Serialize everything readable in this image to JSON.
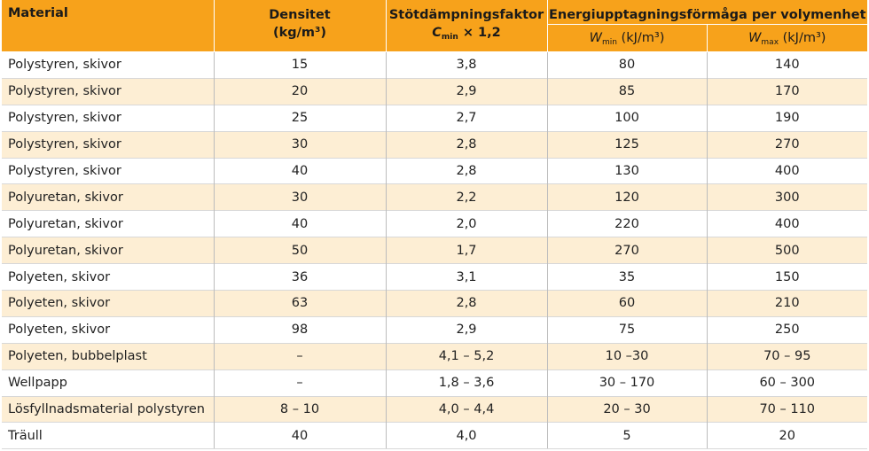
{
  "header": {
    "material": "Material",
    "density_line1": "Densitet",
    "density_line2": "(kg/m³)",
    "shock_line1": "Stötdämpningsfaktor",
    "shock_var": "C",
    "shock_sub": "min",
    "shock_rest": " × 1,2",
    "energy": "Energiupptagningsförmåga per volymenhet",
    "wmin_var": "W",
    "wmin_sub": "min",
    "wmin_unit": " (kJ/m³)",
    "wmax_var": "W",
    "wmax_sub": "max",
    "wmax_unit": " (kJ/m³)"
  },
  "rows": [
    {
      "material": "Polystyren, skivor",
      "density": "15",
      "shock": "3,8",
      "wmin": "80",
      "wmax": "140"
    },
    {
      "material": "Polystyren, skivor",
      "density": "20",
      "shock": "2,9",
      "wmin": "85",
      "wmax": "170"
    },
    {
      "material": "Polystyren, skivor",
      "density": "25",
      "shock": "2,7",
      "wmin": "100",
      "wmax": "190"
    },
    {
      "material": "Polystyren, skivor",
      "density": "30",
      "shock": "2,8",
      "wmin": "125",
      "wmax": "270"
    },
    {
      "material": "Polystyren, skivor",
      "density": "40",
      "shock": "2,8",
      "wmin": "130",
      "wmax": "400"
    },
    {
      "material": "Polyuretan, skivor",
      "density": "30",
      "shock": "2,2",
      "wmin": "120",
      "wmax": "300"
    },
    {
      "material": "Polyuretan, skivor",
      "density": "40",
      "shock": "2,0",
      "wmin": "220",
      "wmax": "400"
    },
    {
      "material": "Polyuretan, skivor",
      "density": "50",
      "shock": "1,7",
      "wmin": "270",
      "wmax": "500"
    },
    {
      "material": "Polyeten, skivor",
      "density": "36",
      "shock": "3,1",
      "wmin": "35",
      "wmax": "150"
    },
    {
      "material": "Polyeten, skivor",
      "density": "63",
      "shock": "2,8",
      "wmin": "60",
      "wmax": "210"
    },
    {
      "material": "Polyeten, skivor",
      "density": "98",
      "shock": "2,9",
      "wmin": "75",
      "wmax": "250"
    },
    {
      "material": "Polyeten, bubbelplast",
      "density": "–",
      "shock": "4,1 – 5,2",
      "wmin": "10 –30",
      "wmax": "70 – 95"
    },
    {
      "material": "Wellpapp",
      "density": "–",
      "shock": "1,8 – 3,6",
      "wmin": "30 – 170",
      "wmax": "60 – 300"
    },
    {
      "material": "Lösfyllnadsmaterial polystyren",
      "density": "8 – 10",
      "shock": "4,0 – 4,4",
      "wmin": "20 – 30",
      "wmax": "70 – 110"
    },
    {
      "material": "Träull",
      "density": "40",
      "shock": "4,0",
      "wmin": "5",
      "wmax": "20"
    }
  ],
  "colors": {
    "header_bg": "#f7a21b",
    "shaded_row_bg": "#fdeed4",
    "plain_row_bg": "#ffffff"
  }
}
